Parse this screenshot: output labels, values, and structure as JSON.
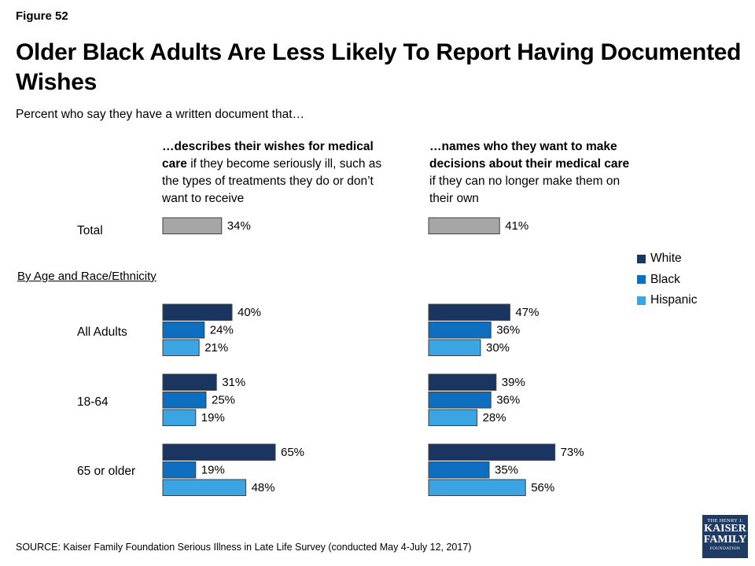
{
  "figure_label": "Figure 52",
  "title": "Older Black Adults Are Less Likely To Report Having Documented Wishes",
  "subtitle": "Percent who say they have a written document that…",
  "panels": [
    {
      "head_bold": "…describes their wishes for medical care",
      "head_rest": " if they become seriously ill, such as the types of treatments they do or don’t want to receive"
    },
    {
      "head_bold": "…names who they want to make decisions about their medical care",
      "head_rest": " if they can no longer make them on their own"
    }
  ],
  "row_labels": {
    "total": "Total",
    "all": "All Adults",
    "age1": "18-64",
    "age2": "65 or older"
  },
  "section_label": "By Age and Race/Ethnicity",
  "legend": [
    "White",
    "Black",
    "Hispanic"
  ],
  "colors": {
    "total": "#a6a6a6",
    "White": "#1a3560",
    "Black": "#0e6fc0",
    "Hispanic": "#3ba4e3"
  },
  "source": "SOURCE: Kaiser Family Foundation Serious Illness in Late Life Survey (conducted May 4-July 12, 2017)",
  "logo": {
    "line1": "THE HENRY J.",
    "line2": "KAISER",
    "line3": "FAMILY",
    "line4": "FOUNDATION"
  },
  "chart_data": [
    {
      "type": "bar",
      "title": "…describes their wishes for medical care if they become seriously ill, such as the types of treatments they do or don’t want to receive",
      "total": 34,
      "categories": [
        "All Adults",
        "18-64",
        "65 or older"
      ],
      "series": [
        {
          "name": "White",
          "values": [
            40,
            31,
            65
          ]
        },
        {
          "name": "Black",
          "values": [
            24,
            25,
            19
          ]
        },
        {
          "name": "Hispanic",
          "values": [
            21,
            19,
            48
          ]
        }
      ],
      "unit": "%"
    },
    {
      "type": "bar",
      "title": "…names who they want to make decisions about their medical care if they can no longer make them on their own",
      "total": 41,
      "categories": [
        "All Adults",
        "18-64",
        "65 or older"
      ],
      "series": [
        {
          "name": "White",
          "values": [
            47,
            39,
            73
          ]
        },
        {
          "name": "Black",
          "values": [
            36,
            36,
            35
          ]
        },
        {
          "name": "Hispanic",
          "values": [
            30,
            28,
            56
          ]
        }
      ],
      "unit": "%"
    }
  ]
}
